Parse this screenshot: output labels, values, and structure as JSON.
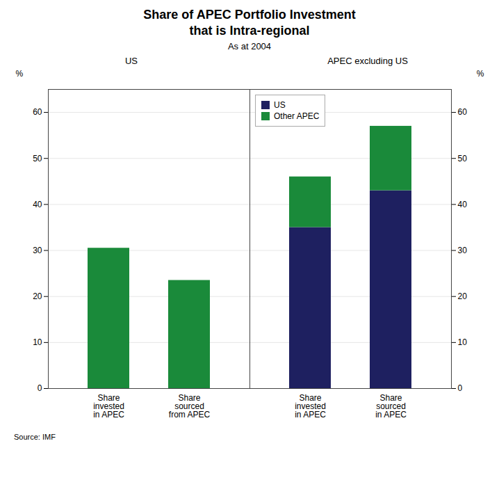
{
  "title": "Share of APEC Portfolio Investment\nthat is Intra-regional",
  "subtitle": "As at 2004",
  "source": "Source: IMF",
  "chart_data": [
    {
      "type": "bar",
      "title": "US",
      "categories": [
        "Share\ninvested\nin APEC",
        "Share\nsourced\nfrom APEC"
      ],
      "values": [
        30.5,
        23.5
      ],
      "color": "#1a8a3a",
      "ylabel": "%",
      "ylim": [
        0,
        65
      ],
      "yticks": [
        0,
        10,
        20,
        30,
        40,
        50,
        60
      ],
      "grid": true
    },
    {
      "type": "bar",
      "title": "APEC excluding US",
      "categories": [
        "Share\ninvested\nin APEC",
        "Share\nsourced\nin APEC"
      ],
      "stacked": true,
      "series": [
        {
          "name": "US",
          "color": "#1e2060",
          "values": [
            35.0,
            43.0
          ]
        },
        {
          "name": "Other APEC",
          "color": "#1a8a3a",
          "values": [
            11.0,
            14.0
          ]
        }
      ],
      "legend": "upper left",
      "ylabel": "%",
      "ylim": [
        0,
        65
      ],
      "yticks": [
        0,
        10,
        20,
        30,
        40,
        50,
        60
      ],
      "grid": true
    }
  ]
}
